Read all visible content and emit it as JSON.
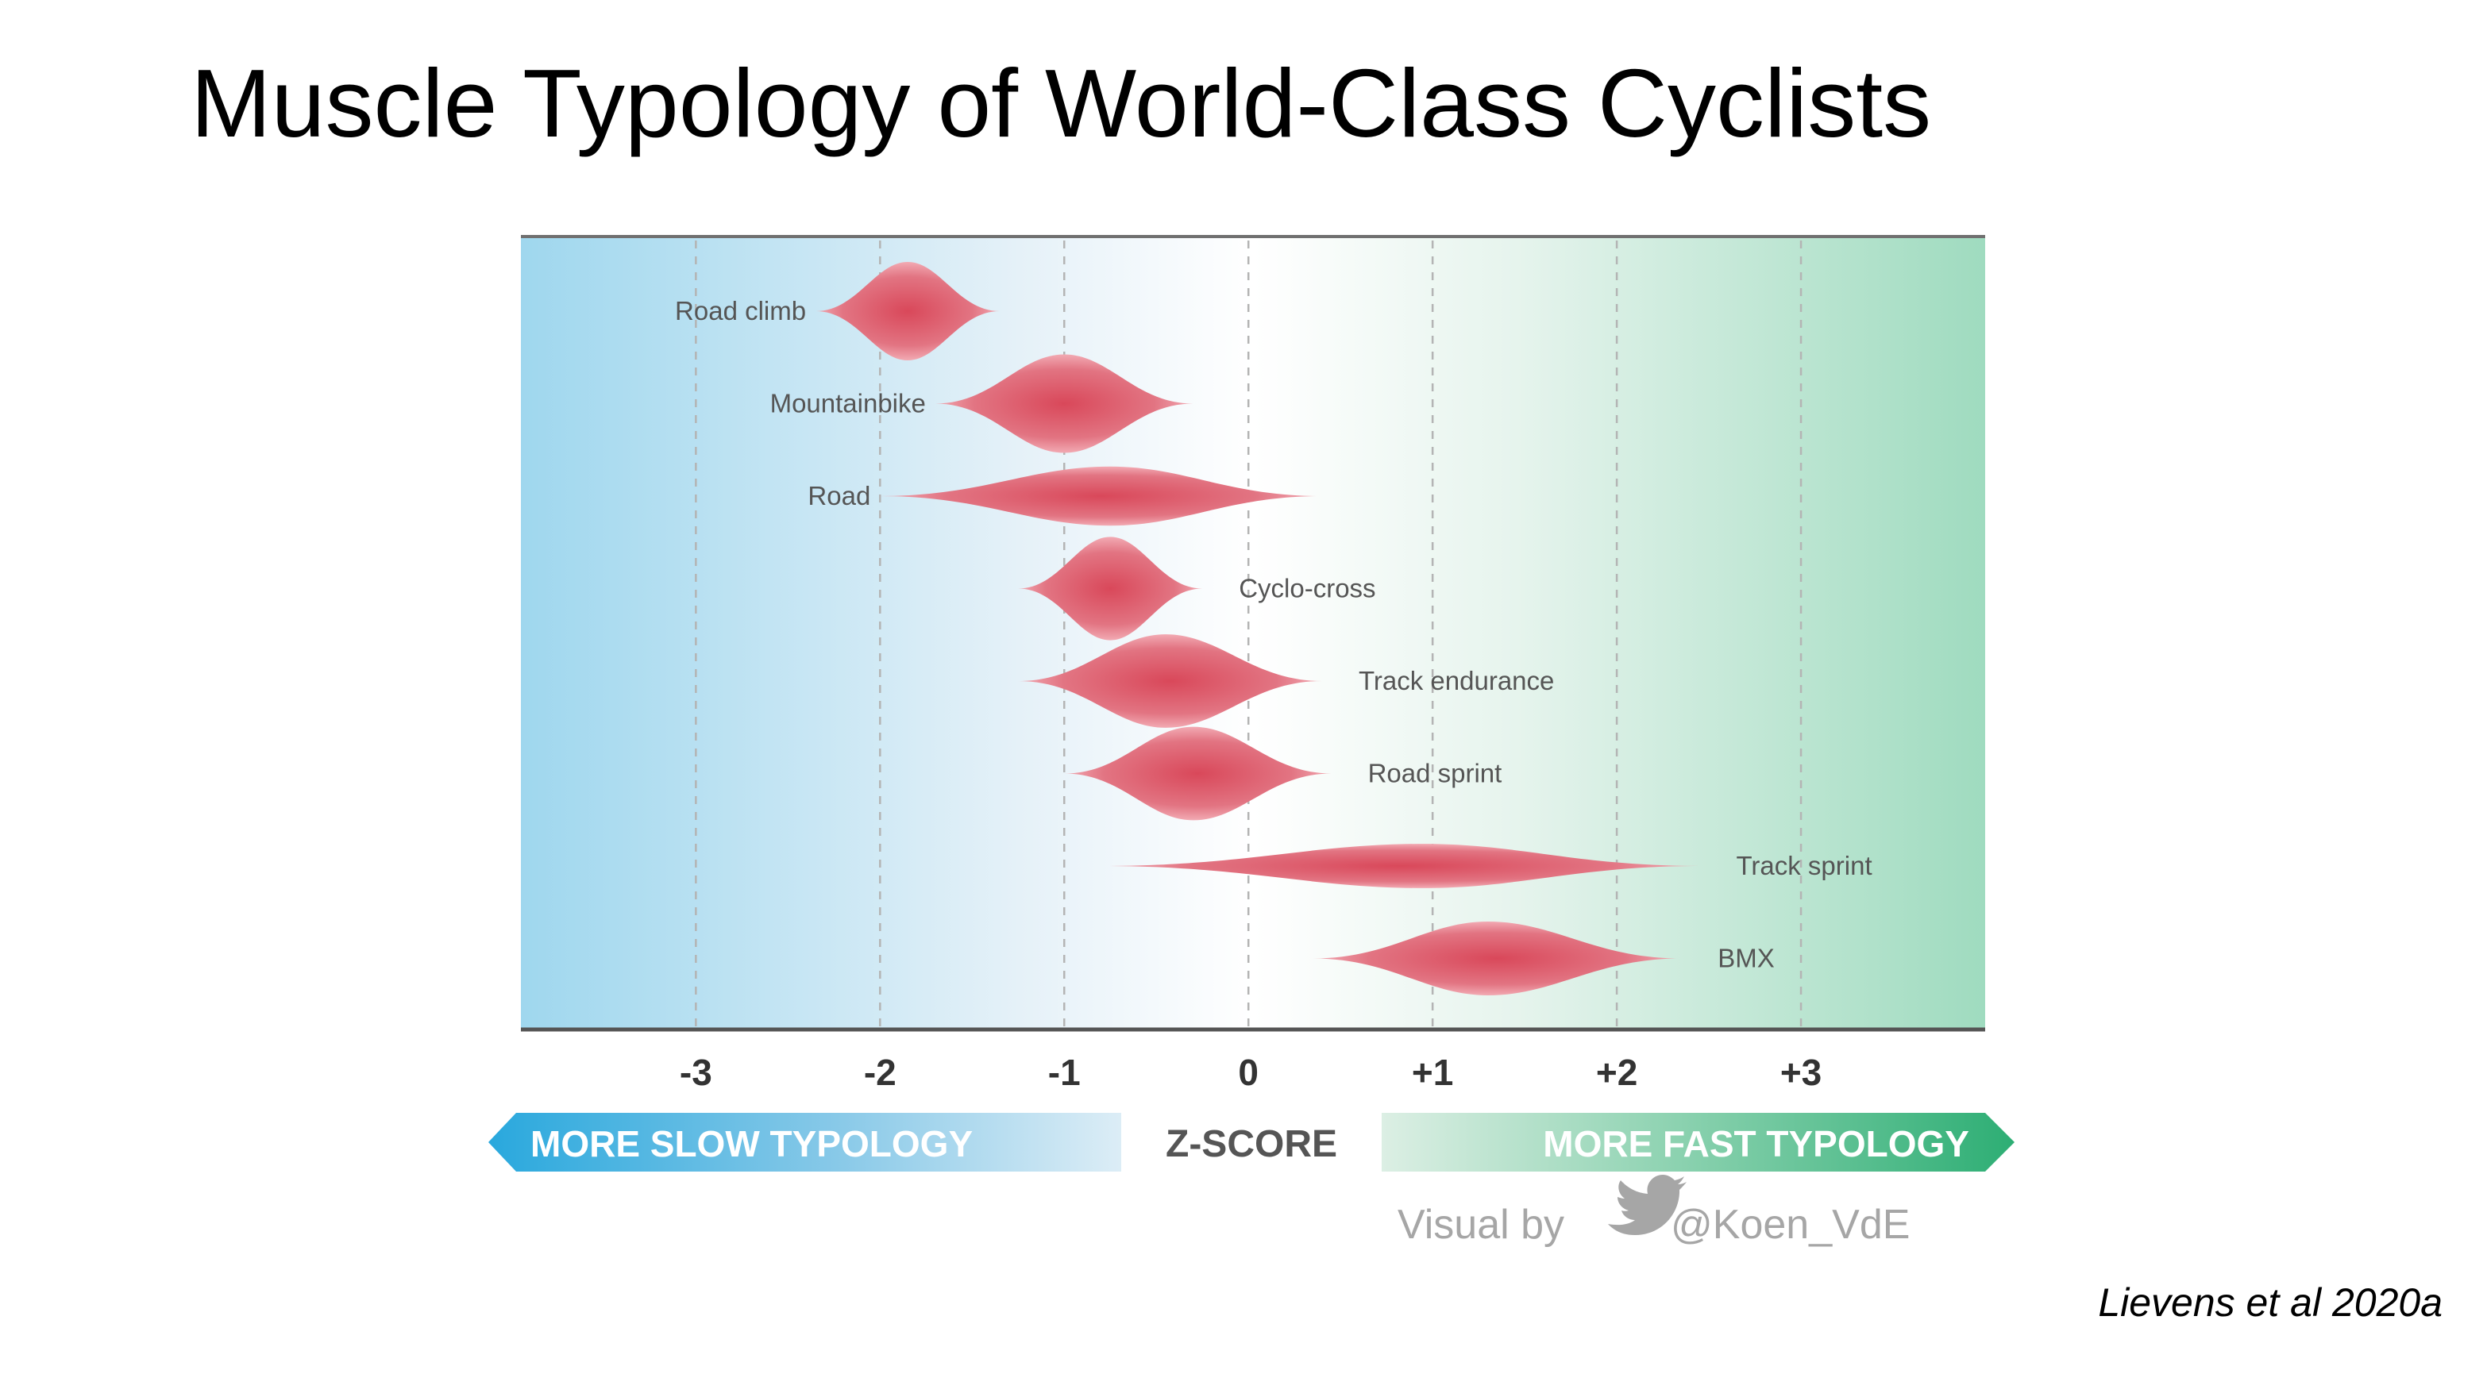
{
  "slide": {
    "title": "Muscle Typology of World-Class Cyclists",
    "citation": "Lievens et al 2020a"
  },
  "chart_data": {
    "type": "violin",
    "title": "Muscle Typology of World-Class Cyclists",
    "xlabel": "Z-SCORE",
    "xlim": [
      -3.95,
      4.0
    ],
    "x_ticks": [
      -3,
      -2,
      -1,
      0,
      1,
      2,
      3
    ],
    "x_tick_labels": [
      "-3",
      "-2",
      "-1",
      "0",
      "+1",
      "+2",
      "+3"
    ],
    "grid": "vertical dashed at each tick",
    "left_annotation": "MORE SLOW TYPOLOGY",
    "right_annotation": "MORE FAST TYPOLOGY",
    "credit_prefix": "Visual by",
    "credit_handle": "@Koen_VdE",
    "colors": {
      "slow": "#29a8dd",
      "fast": "#2dae74",
      "violin": "#d9485a",
      "violin_light": "#f2aab3",
      "axis": "#555555"
    },
    "series": [
      {
        "name": "Road climb",
        "center": -1.85,
        "min": -2.35,
        "max": -1.35,
        "peak_width": 1.0,
        "label_side": "left"
      },
      {
        "name": "Mountainbike",
        "center": -1.0,
        "min": -1.7,
        "max": -0.3,
        "peak_width": 1.0,
        "label_side": "left"
      },
      {
        "name": "Road",
        "center": -0.75,
        "min": -2.0,
        "max": 0.4,
        "peak_width": 0.6,
        "label_side": "left"
      },
      {
        "name": "Cyclo-cross",
        "center": -0.75,
        "min": -1.25,
        "max": -0.25,
        "peak_width": 1.05,
        "label_side": "right"
      },
      {
        "name": "Track endurance",
        "center": -0.45,
        "min": -1.25,
        "max": 0.4,
        "peak_width": 0.95,
        "label_side": "right"
      },
      {
        "name": "Road sprint",
        "center": -0.3,
        "min": -1.0,
        "max": 0.45,
        "peak_width": 0.95,
        "label_side": "right"
      },
      {
        "name": "Track sprint",
        "center": 0.95,
        "min": -0.8,
        "max": 2.45,
        "peak_width": 0.45,
        "label_side": "right"
      },
      {
        "name": "BMX",
        "center": 1.3,
        "min": 0.35,
        "max": 2.35,
        "peak_width": 0.75,
        "label_side": "right"
      }
    ]
  }
}
